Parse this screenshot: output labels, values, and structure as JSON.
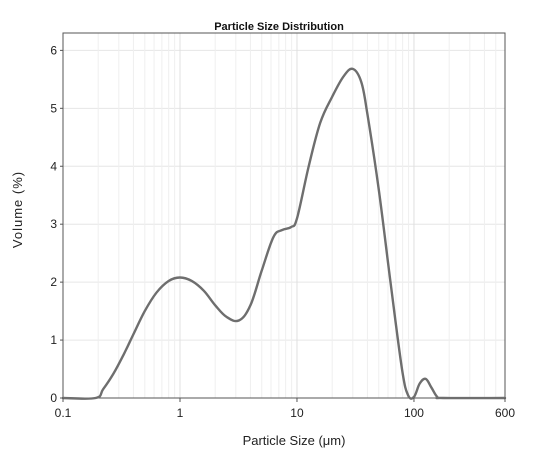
{
  "chart_data": {
    "type": "line",
    "title": "Particle Size Distribution",
    "xlabel": "Particle Size (μm)",
    "ylabel": "Volume (%)",
    "x_scale": "log",
    "xlim": [
      0.1,
      600
    ],
    "ylim": [
      0,
      6.3
    ],
    "xticks": [
      0.1,
      1,
      10,
      100,
      600
    ],
    "xtick_labels": [
      "0.1",
      "1",
      "10",
      "100",
      "600"
    ],
    "yticks": [
      0,
      1,
      2,
      3,
      4,
      5,
      6
    ],
    "ytick_labels": [
      "0",
      "1",
      "2",
      "3",
      "4",
      "5",
      "6"
    ],
    "grid": true,
    "legend": "none",
    "series": [
      {
        "color": "#6e6e6e",
        "points": [
          [
            0.1,
            0.0
          ],
          [
            0.19,
            0.0
          ],
          [
            0.22,
            0.15
          ],
          [
            0.27,
            0.42
          ],
          [
            0.33,
            0.75
          ],
          [
            0.4,
            1.1
          ],
          [
            0.5,
            1.5
          ],
          [
            0.63,
            1.82
          ],
          [
            0.8,
            2.02
          ],
          [
            1.0,
            2.08
          ],
          [
            1.26,
            2.02
          ],
          [
            1.6,
            1.85
          ],
          [
            2.0,
            1.6
          ],
          [
            2.5,
            1.4
          ],
          [
            3.2,
            1.34
          ],
          [
            4.0,
            1.6
          ],
          [
            5.0,
            2.2
          ],
          [
            6.3,
            2.78
          ],
          [
            7.5,
            2.9
          ],
          [
            8.9,
            2.95
          ],
          [
            10.0,
            3.1
          ],
          [
            12.6,
            4.0
          ],
          [
            15.8,
            4.75
          ],
          [
            20.0,
            5.2
          ],
          [
            25.0,
            5.55
          ],
          [
            30.0,
            5.68
          ],
          [
            35.5,
            5.45
          ],
          [
            40.0,
            4.9
          ],
          [
            50.0,
            3.6
          ],
          [
            63.0,
            2.0
          ],
          [
            79.0,
            0.5
          ],
          [
            89.0,
            0.05
          ],
          [
            100.0,
            0.02
          ],
          [
            112.0,
            0.25
          ],
          [
            126.0,
            0.33
          ],
          [
            141.0,
            0.18
          ],
          [
            158.0,
            0.02
          ],
          [
            178.0,
            0.0
          ],
          [
            600.0,
            0.0
          ]
        ]
      }
    ]
  }
}
